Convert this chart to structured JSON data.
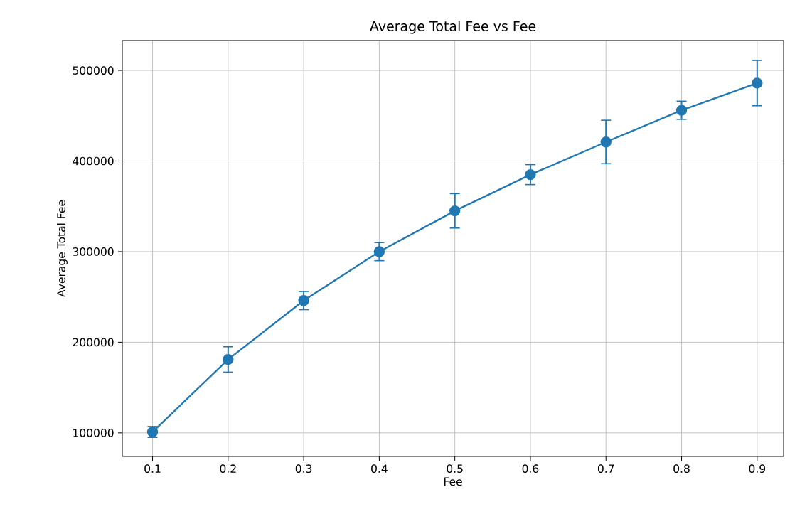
{
  "chart_data": {
    "type": "line",
    "title": "Average Total Fee vs Fee",
    "xlabel": "Fee",
    "ylabel": "Average Total Fee",
    "x": [
      0.1,
      0.2,
      0.3,
      0.4,
      0.5,
      0.6,
      0.7,
      0.8,
      0.9
    ],
    "values": [
      101000,
      181000,
      246000,
      300000,
      345000,
      385000,
      421000,
      456000,
      486000
    ],
    "errors": [
      6000,
      14000,
      10000,
      10000,
      19000,
      11000,
      24000,
      10000,
      25000
    ],
    "color": "#1f77b4",
    "marker": "circle",
    "line_style": "solid",
    "grid": true,
    "xlim": [
      0.06,
      0.935
    ],
    "ylim": [
      74000,
      533000
    ],
    "xticks": [
      0.1,
      0.2,
      0.3,
      0.4,
      0.5,
      0.6,
      0.7,
      0.8,
      0.9
    ],
    "yticks": [
      100000,
      200000,
      300000,
      400000,
      500000
    ]
  }
}
